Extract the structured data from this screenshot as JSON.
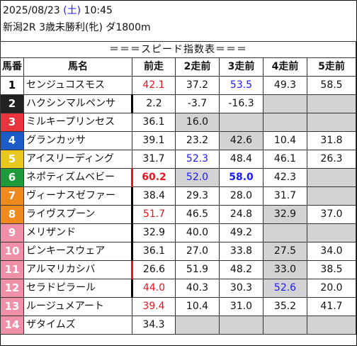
{
  "header": {
    "date": "2025/08/23",
    "day_open": "(",
    "day": "土",
    "day_close": ")",
    "time": "10:45",
    "race": "新潟2R 3歳未勝利(牝) ダ1800m"
  },
  "table": {
    "banner": "＝＝＝スピード指数表＝＝＝",
    "columns": [
      "馬番",
      "馬名",
      "前走",
      "2走前",
      "3走前",
      "4走前",
      "5走前"
    ],
    "colors": {
      "frame_1": "#ffffff",
      "frame_2": "#222222",
      "frame_3": "#e8343c",
      "frame_4": "#1d5cc8",
      "frame_5": "#e8c81d",
      "frame_6": "#1f9a3a",
      "frame_7": "#f08a1d",
      "frame_8": "#f090a8",
      "highlight_red": "#e8141c",
      "highlight_blue": "#1a1aff",
      "gray_cell": "#d3d3d5"
    },
    "rows": [
      {
        "num": "1",
        "name": "センジュコスモス",
        "v": [
          "42.1",
          "37.2",
          "53.5",
          "49.3",
          "58.5"
        ]
      },
      {
        "num": "2",
        "name": "ハクシンマルペンサ",
        "v": [
          "2.2",
          "-3.7",
          "-16.3",
          "",
          ""
        ]
      },
      {
        "num": "3",
        "name": "ミルキープリンセス",
        "v": [
          "36.1",
          "16.0",
          "",
          "",
          ""
        ]
      },
      {
        "num": "4",
        "name": "グランカッサ",
        "v": [
          "39.1",
          "23.2",
          "42.6",
          "10.4",
          "31.8"
        ]
      },
      {
        "num": "5",
        "name": "アイスリーディング",
        "v": [
          "31.7",
          "52.3",
          "48.4",
          "46.1",
          "26.3"
        ]
      },
      {
        "num": "6",
        "name": "ネポティズムベビー",
        "v": [
          "60.2",
          "52.0",
          "58.0",
          "42.3",
          ""
        ]
      },
      {
        "num": "7",
        "name": "ヴィーナスゼファー",
        "v": [
          "38.4",
          "29.3",
          "28.0",
          "31.7",
          ""
        ]
      },
      {
        "num": "8",
        "name": "ライヴスプーン",
        "v": [
          "51.7",
          "46.5",
          "24.8",
          "32.9",
          "37.0"
        ]
      },
      {
        "num": "9",
        "name": "メリザンド",
        "v": [
          "32.9",
          "40.0",
          "49.2",
          "",
          ""
        ]
      },
      {
        "num": "10",
        "name": "ピンキースウェア",
        "v": [
          "36.1",
          "27.0",
          "33.8",
          "27.5",
          "34.0"
        ]
      },
      {
        "num": "11",
        "name": "アルマリカシバ",
        "v": [
          "26.6",
          "51.9",
          "48.2",
          "33.0",
          "38.5"
        ]
      },
      {
        "num": "12",
        "name": "セラドピラール",
        "v": [
          "44.0",
          "40.3",
          "30.3",
          "52.6",
          "20.0"
        ]
      },
      {
        "num": "13",
        "name": "ルージュメアート",
        "v": [
          "39.4",
          "10.4",
          "31.0",
          "35.2",
          "41.7"
        ]
      },
      {
        "num": "14",
        "name": "ザタイムズ",
        "v": [
          "34.3",
          "",
          "",
          "",
          ""
        ]
      }
    ]
  }
}
